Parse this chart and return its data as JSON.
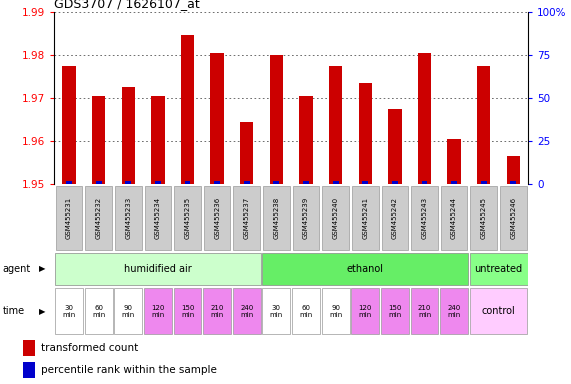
{
  "title": "GDS3707 / 1626107_at",
  "samples": [
    "GSM455231",
    "GSM455232",
    "GSM455233",
    "GSM455234",
    "GSM455235",
    "GSM455236",
    "GSM455237",
    "GSM455238",
    "GSM455239",
    "GSM455240",
    "GSM455241",
    "GSM455242",
    "GSM455243",
    "GSM455244",
    "GSM455245",
    "GSM455246"
  ],
  "red_values": [
    1.9775,
    1.9705,
    1.9725,
    1.9705,
    1.9845,
    1.9805,
    1.9645,
    1.98,
    1.9705,
    1.9775,
    1.9735,
    1.9675,
    1.9805,
    1.9605,
    1.9775,
    1.9565
  ],
  "blue_percentile": [
    2,
    2,
    2,
    2,
    2,
    2,
    2,
    2,
    2,
    2,
    2,
    2,
    2,
    2,
    2,
    2
  ],
  "ylim": [
    1.95,
    1.99
  ],
  "yticks": [
    1.95,
    1.96,
    1.97,
    1.98,
    1.99
  ],
  "y2ticks": [
    0,
    25,
    50,
    75,
    100
  ],
  "bar_bottom": 1.95,
  "red_color": "#cc0000",
  "blue_color": "#0000cc",
  "sample_box_color": "#cccccc",
  "sample_box_edge": "#999999",
  "agent_groups": [
    {
      "label": "humidified air",
      "start": 0,
      "end": 7,
      "color": "#ccffcc"
    },
    {
      "label": "ethanol",
      "start": 7,
      "end": 14,
      "color": "#66ee66"
    },
    {
      "label": "untreated",
      "start": 14,
      "end": 16,
      "color": "#88ff88"
    }
  ],
  "time_labels": [
    "30\nmin",
    "60\nmin",
    "90\nmin",
    "120\nmin",
    "150\nmin",
    "210\nmin",
    "240\nmin",
    "30\nmin",
    "60\nmin",
    "90\nmin",
    "120\nmin",
    "150\nmin",
    "210\nmin",
    "240\nmin"
  ],
  "time_colors_white": [
    0,
    1,
    2,
    7,
    8,
    9
  ],
  "time_color_white": "#ffffff",
  "time_color_pink": "#ee88ee",
  "control_label": "control",
  "control_color": "#ffccff",
  "agent_label": "agent",
  "time_label": "time",
  "legend_red": "transformed count",
  "legend_blue": "percentile rank within the sample",
  "bg_color": "#ffffff",
  "grid_color": "#555555",
  "title_fontsize": 9
}
